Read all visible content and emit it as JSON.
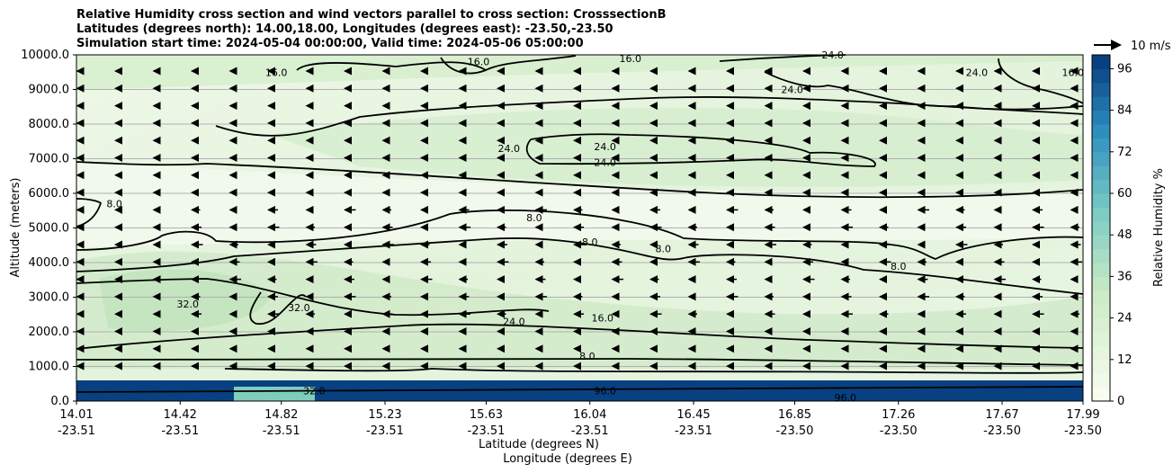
{
  "title_lines": [
    "Relative Humidity cross section and wind vectors parallel to cross section: CrosssectionB",
    "Latitudes (degrees north): 14.00,18.00, Longitudes (degrees east): -23.50,-23.50",
    "Simulation start time: 2024-05-04 00:00:00, Valid time: 2024-05-06 05:00:00"
  ],
  "colors": {
    "rh_low": "#f7fcf0",
    "rh_mid": "#ccebc5",
    "rh_high": "#084081",
    "contour": "#000000",
    "grid": "#b0b0b0"
  },
  "chart_data": {
    "type": "heatmap",
    "ylabel": "Altitude (meters)",
    "xlabel_line1": "Latitude (degrees N)",
    "xlabel_line2": "Longitude (degrees E)",
    "ylim": [
      0,
      10000
    ],
    "y_ticks": [
      "0.0",
      "1000.0",
      "2000.0",
      "3000.0",
      "4000.0",
      "5000.0",
      "6000.0",
      "7000.0",
      "8000.0",
      "9000.0",
      "10000.0"
    ],
    "x_ticks": [
      {
        "lat": "14.01",
        "lon": "-23.51"
      },
      {
        "lat": "14.42",
        "lon": "-23.51"
      },
      {
        "lat": "14.82",
        "lon": "-23.51"
      },
      {
        "lat": "15.23",
        "lon": "-23.51"
      },
      {
        "lat": "15.63",
        "lon": "-23.51"
      },
      {
        "lat": "16.04",
        "lon": "-23.51"
      },
      {
        "lat": "16.45",
        "lon": "-23.51"
      },
      {
        "lat": "16.85",
        "lon": "-23.50"
      },
      {
        "lat": "17.26",
        "lon": "-23.50"
      },
      {
        "lat": "17.67",
        "lon": "-23.50"
      },
      {
        "lat": "17.99",
        "lon": "-23.50"
      }
    ],
    "xlim": [
      14.01,
      17.99
    ],
    "grid": "horizontal",
    "colorbar": {
      "label": "Relative Humidity %",
      "range": [
        0,
        100
      ],
      "ticks": [
        "0",
        "12",
        "24",
        "36",
        "48",
        "60",
        "72",
        "84",
        "96"
      ]
    },
    "quiver_key": "10 m/s",
    "contour_labels": [
      {
        "text": "16.0",
        "lat": 14.8,
        "alt": 9500
      },
      {
        "text": "16.0",
        "lat": 15.6,
        "alt": 9800
      },
      {
        "text": "16.0",
        "lat": 16.2,
        "alt": 9900
      },
      {
        "text": "24.0",
        "lat": 17.0,
        "alt": 10000
      },
      {
        "text": "24.0",
        "lat": 17.57,
        "alt": 9500
      },
      {
        "text": "16.0",
        "lat": 17.95,
        "alt": 9500
      },
      {
        "text": "24.0",
        "lat": 16.84,
        "alt": 9000
      },
      {
        "text": "24.0",
        "lat": 15.72,
        "alt": 7300
      },
      {
        "text": "24.0",
        "lat": 16.1,
        "alt": 7350
      },
      {
        "text": "24.0",
        "lat": 16.1,
        "alt": 6900
      },
      {
        "text": "8.0",
        "lat": 14.16,
        "alt": 5700
      },
      {
        "text": "8.0",
        "lat": 15.82,
        "alt": 5300
      },
      {
        "text": "8.0",
        "lat": 16.04,
        "alt": 4600
      },
      {
        "text": "8.0",
        "lat": 16.33,
        "alt": 4400
      },
      {
        "text": "8.0",
        "lat": 17.26,
        "alt": 3900
      },
      {
        "text": "32.0",
        "lat": 14.45,
        "alt": 2800
      },
      {
        "text": "32.0",
        "lat": 14.89,
        "alt": 2700
      },
      {
        "text": "24.0",
        "lat": 15.74,
        "alt": 2300
      },
      {
        "text": "16.0",
        "lat": 16.09,
        "alt": 2400
      },
      {
        "text": "8.0",
        "lat": 16.03,
        "alt": 1300
      },
      {
        "text": "32.0",
        "lat": 14.95,
        "alt": 300
      },
      {
        "text": "96.0",
        "lat": 16.1,
        "alt": 300
      },
      {
        "text": "96.0",
        "lat": 17.05,
        "alt": 100
      }
    ]
  }
}
